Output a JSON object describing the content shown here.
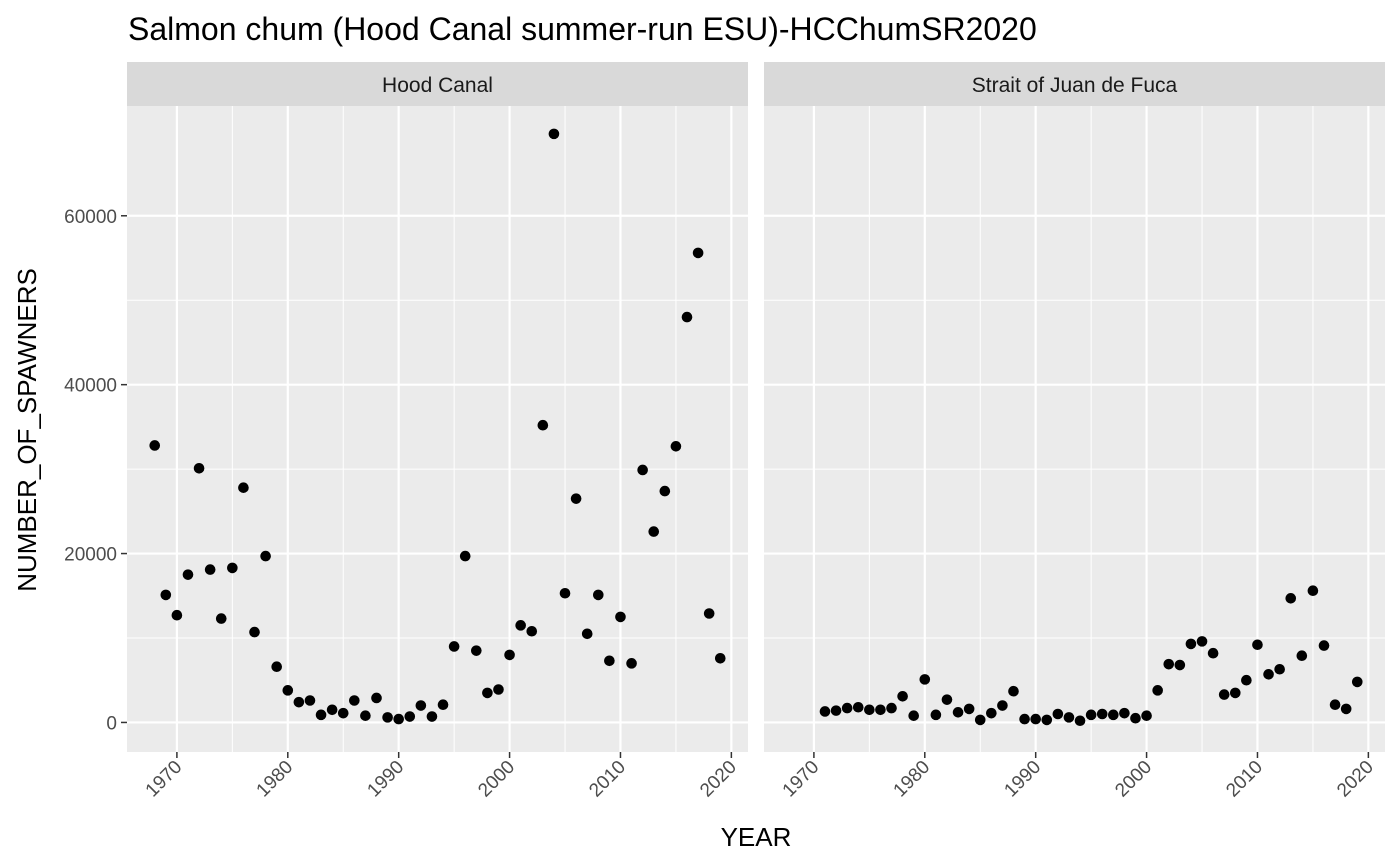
{
  "chart_data": {
    "type": "scatter",
    "title": "Salmon chum (Hood Canal summer-run ESU)-HCChumSR2020",
    "xlabel": "YEAR",
    "ylabel": "NUMBER_OF_SPAWNERS",
    "xlim": [
      1965.5,
      2021.5
    ],
    "ylim": [
      -3500,
      73000
    ],
    "x_ticks": [
      1970,
      1980,
      1990,
      2000,
      2010,
      2020
    ],
    "x_tick_labels": [
      "1970",
      "1980",
      "1990",
      "2000",
      "2010",
      "2020"
    ],
    "y_ticks": [
      0,
      20000,
      40000,
      60000
    ],
    "y_tick_labels": [
      "0",
      "20000",
      "40000",
      "60000"
    ],
    "grid": true,
    "point_color": "#000000",
    "panel_bg": "#ebebeb",
    "strip_bg": "#d9d9d9",
    "facets": [
      {
        "name": "Hood Canal",
        "points": [
          [
            1968,
            32800
          ],
          [
            1969,
            15100
          ],
          [
            1970,
            12700
          ],
          [
            1971,
            17500
          ],
          [
            1972,
            30100
          ],
          [
            1973,
            18100
          ],
          [
            1974,
            12300
          ],
          [
            1975,
            18300
          ],
          [
            1976,
            27800
          ],
          [
            1977,
            10700
          ],
          [
            1978,
            19700
          ],
          [
            1979,
            6600
          ],
          [
            1980,
            3800
          ],
          [
            1981,
            2400
          ],
          [
            1982,
            2600
          ],
          [
            1983,
            900
          ],
          [
            1984,
            1500
          ],
          [
            1985,
            1100
          ],
          [
            1986,
            2600
          ],
          [
            1987,
            800
          ],
          [
            1988,
            2900
          ],
          [
            1989,
            600
          ],
          [
            1990,
            400
          ],
          [
            1991,
            700
          ],
          [
            1992,
            2000
          ],
          [
            1993,
            700
          ],
          [
            1994,
            2100
          ],
          [
            1995,
            9000
          ],
          [
            1996,
            19700
          ],
          [
            1997,
            8500
          ],
          [
            1998,
            3500
          ],
          [
            1999,
            3900
          ],
          [
            2000,
            8000
          ],
          [
            2001,
            11500
          ],
          [
            2002,
            10800
          ],
          [
            2003,
            35200
          ],
          [
            2004,
            69700
          ],
          [
            2005,
            15300
          ],
          [
            2006,
            26500
          ],
          [
            2007,
            10500
          ],
          [
            2008,
            15100
          ],
          [
            2009,
            7300
          ],
          [
            2010,
            12500
          ],
          [
            2011,
            7000
          ],
          [
            2012,
            29900
          ],
          [
            2013,
            22600
          ],
          [
            2014,
            27400
          ],
          [
            2015,
            32700
          ],
          [
            2016,
            48000
          ],
          [
            2017,
            55600
          ],
          [
            2018,
            12900
          ],
          [
            2019,
            7600
          ]
        ]
      },
      {
        "name": "Strait of Juan de Fuca",
        "points": [
          [
            1971,
            1300
          ],
          [
            1972,
            1400
          ],
          [
            1973,
            1700
          ],
          [
            1974,
            1800
          ],
          [
            1975,
            1500
          ],
          [
            1976,
            1500
          ],
          [
            1977,
            1700
          ],
          [
            1978,
            3100
          ],
          [
            1979,
            800
          ],
          [
            1980,
            5100
          ],
          [
            1981,
            900
          ],
          [
            1982,
            2700
          ],
          [
            1983,
            1200
          ],
          [
            1984,
            1600
          ],
          [
            1985,
            300
          ],
          [
            1986,
            1100
          ],
          [
            1987,
            2000
          ],
          [
            1988,
            3700
          ],
          [
            1989,
            400
          ],
          [
            1990,
            400
          ],
          [
            1991,
            300
          ],
          [
            1992,
            1000
          ],
          [
            1993,
            600
          ],
          [
            1994,
            200
          ],
          [
            1995,
            900
          ],
          [
            1996,
            1000
          ],
          [
            1997,
            900
          ],
          [
            1998,
            1100
          ],
          [
            1999,
            500
          ],
          [
            2000,
            800
          ],
          [
            2001,
            3800
          ],
          [
            2002,
            6900
          ],
          [
            2003,
            6800
          ],
          [
            2004,
            9300
          ],
          [
            2005,
            9600
          ],
          [
            2006,
            8200
          ],
          [
            2007,
            3300
          ],
          [
            2008,
            3500
          ],
          [
            2009,
            5000
          ],
          [
            2010,
            9200
          ],
          [
            2011,
            5700
          ],
          [
            2012,
            6300
          ],
          [
            2013,
            14700
          ],
          [
            2014,
            7900
          ],
          [
            2015,
            15600
          ],
          [
            2016,
            9100
          ],
          [
            2017,
            2100
          ],
          [
            2018,
            1600
          ],
          [
            2019,
            4800
          ]
        ]
      }
    ]
  }
}
